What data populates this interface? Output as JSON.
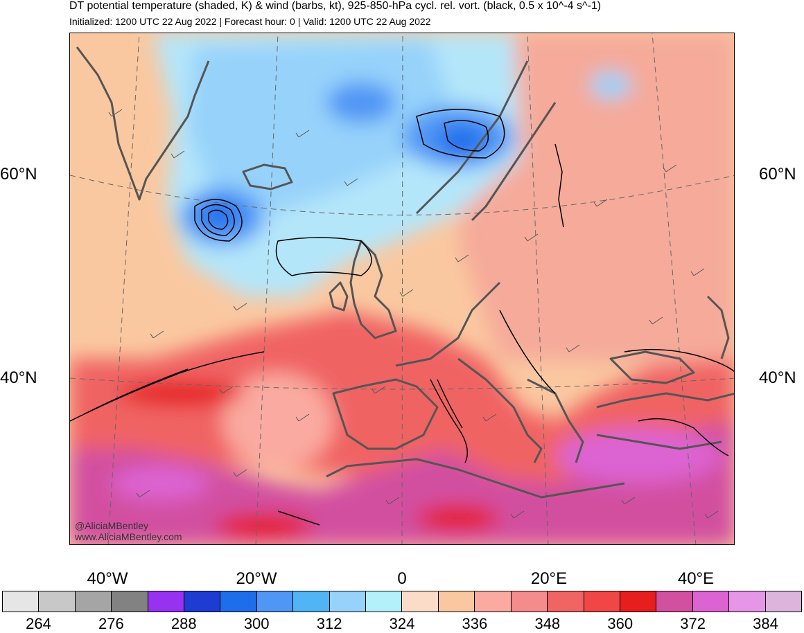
{
  "header": {
    "title": "DT potential temperature (shaded, K) & wind (barbs, kt), 925-850-hPa cycl. rel. vort. (black, 0.5 x 10^-4 s^-1)",
    "subtitle": "Initialized: 1200 UTC 22 Aug 2022 | Forecast hour: 0 | Valid: 1200 UTC 22 Aug 2022"
  },
  "map": {
    "latitude_labels": [
      "60°N",
      "40°N"
    ],
    "longitude_labels": [
      "40°W",
      "20°W",
      "0",
      "20°E",
      "40°E"
    ],
    "watermark": [
      "@AliciaMBentley",
      "www.AliciaMBentley.com"
    ]
  },
  "colorbar": {
    "colors": [
      "#e6e6e6",
      "#c8c8c8",
      "#a5a5a5",
      "#828282",
      "#9632f0",
      "#1e3cd2",
      "#1e6eeb",
      "#5096f5",
      "#50b4f5",
      "#96d2fa",
      "#b4f0fa",
      "#fadcc8",
      "#fac8a0",
      "#faaaa0",
      "#f58c8c",
      "#f06464",
      "#f04646",
      "#e61e1e",
      "#d250a0",
      "#dc64d2",
      "#e696e6",
      "#dcb4dc"
    ],
    "labels": [
      "264",
      "276",
      "288",
      "300",
      "312",
      "324",
      "336",
      "348",
      "360",
      "372",
      "384"
    ]
  }
}
